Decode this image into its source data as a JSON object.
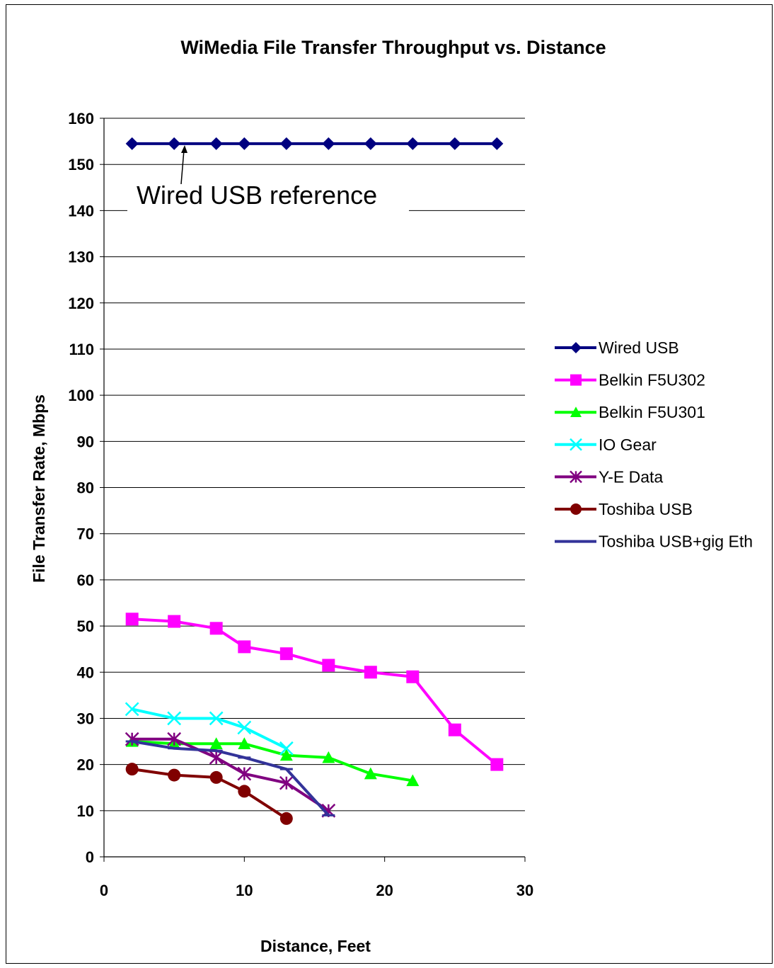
{
  "chart_data": {
    "type": "line",
    "title": "WiMedia File Transfer Throughput vs. Distance",
    "xlabel": "Distance, Feet",
    "ylabel": "File Transfer Rate, Mbps",
    "xlim": [
      0,
      30
    ],
    "ylim": [
      0,
      160
    ],
    "xticks": [
      "0",
      "10",
      "20",
      "30"
    ],
    "yticks": [
      "0",
      "10",
      "20",
      "30",
      "40",
      "50",
      "60",
      "70",
      "80",
      "90",
      "100",
      "110",
      "120",
      "130",
      "140",
      "150",
      "160"
    ],
    "grid": "horizontal",
    "legend_position": "right",
    "annotation": "Wired USB reference",
    "series": [
      {
        "name": "Wired USB",
        "color": "#000080",
        "marker": "diamond",
        "x": [
          2,
          5,
          8,
          10,
          13,
          16,
          19,
          22,
          25,
          28
        ],
        "y": [
          154.5,
          154.5,
          154.5,
          154.5,
          154.5,
          154.5,
          154.5,
          154.5,
          154.5,
          154.5
        ]
      },
      {
        "name": "Belkin F5U302",
        "color": "#FF00FF",
        "marker": "square",
        "x": [
          2,
          5,
          8,
          10,
          13,
          16,
          19,
          22,
          25,
          28
        ],
        "y": [
          51.5,
          51,
          49.5,
          45.5,
          44,
          41.5,
          40,
          39,
          27.5,
          20
        ]
      },
      {
        "name": "Belkin F5U301",
        "color": "#00FF00",
        "marker": "triangle",
        "x": [
          2,
          5,
          8,
          10,
          13,
          16,
          19,
          22
        ],
        "y": [
          25,
          24.5,
          24.5,
          24.5,
          22,
          21.5,
          18,
          16.5
        ]
      },
      {
        "name": "IO Gear",
        "color": "#00FFFF",
        "marker": "x",
        "x": [
          2,
          5,
          8,
          10,
          13
        ],
        "y": [
          32,
          30,
          30,
          28,
          23.5
        ]
      },
      {
        "name": "Y-E Data",
        "color": "#800080",
        "marker": "star",
        "x": [
          2,
          5,
          8,
          10,
          13,
          16
        ],
        "y": [
          25.5,
          25.5,
          21.5,
          18,
          16,
          10
        ]
      },
      {
        "name": "Toshiba USB",
        "color": "#800000",
        "marker": "circle",
        "x": [
          2,
          5,
          8,
          10,
          13
        ],
        "y": [
          19,
          17.7,
          17.2,
          14.2,
          8.3
        ]
      },
      {
        "name": "Toshiba USB+gig Eth",
        "color": "#333399",
        "marker": "dash",
        "x": [
          2,
          5,
          8,
          10,
          13,
          16
        ],
        "y": [
          25,
          23.5,
          23,
          21.5,
          19,
          9
        ]
      }
    ]
  }
}
